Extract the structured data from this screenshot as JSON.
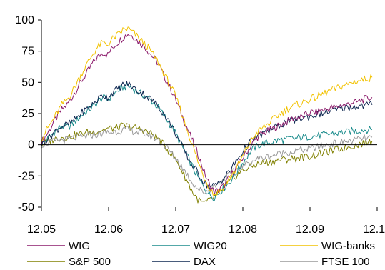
{
  "chart_data": {
    "type": "line",
    "title": "",
    "xlabel": "",
    "ylabel": "",
    "x_ticks": [
      "12.05",
      "12.06",
      "12.07",
      "12.08",
      "12.09",
      "12.10"
    ],
    "y_ticks": [
      100,
      75,
      50,
      25,
      0,
      -25,
      -50
    ],
    "xlim": [
      0,
      66
    ],
    "ylim": [
      -50,
      100
    ],
    "grid": false,
    "legend_position": "bottom",
    "x": [
      0,
      1,
      2,
      3,
      4,
      5,
      6,
      7,
      8,
      9,
      10,
      11,
      12,
      13,
      14,
      15,
      16,
      17,
      18,
      19,
      20,
      21,
      22,
      23,
      24,
      25,
      26,
      27,
      28,
      29,
      30,
      31,
      32,
      33,
      34,
      35,
      36,
      37,
      38,
      39,
      40,
      41,
      42,
      43,
      44,
      45,
      46,
      47,
      48,
      49,
      50,
      51,
      52,
      53,
      54,
      55,
      56,
      57,
      58,
      59,
      60,
      61,
      62,
      63,
      64,
      65
    ],
    "series": [
      {
        "name": "WIG",
        "color": "#8B1A6B",
        "values": [
          2,
          8,
          15,
          22,
          28,
          32,
          38,
          45,
          52,
          58,
          65,
          70,
          74,
          72,
          78,
          82,
          86,
          89,
          87,
          83,
          80,
          75,
          70,
          65,
          56,
          48,
          40,
          30,
          20,
          10,
          0,
          -10,
          -22,
          -32,
          -38,
          -36,
          -32,
          -26,
          -20,
          -14,
          -8,
          -2,
          4,
          8,
          10,
          12,
          14,
          16,
          18,
          20,
          22,
          22,
          24,
          26,
          26,
          28,
          28,
          30,
          30,
          32,
          32,
          34,
          34,
          36,
          37,
          38
        ]
      },
      {
        "name": "WIG20",
        "color": "#1A8C8C",
        "values": [
          0,
          4,
          8,
          12,
          15,
          14,
          16,
          20,
          24,
          27,
          30,
          34,
          38,
          36,
          40,
          43,
          46,
          47,
          45,
          42,
          40,
          37,
          34,
          30,
          24,
          18,
          12,
          4,
          -4,
          -12,
          -20,
          -28,
          -34,
          -40,
          -42,
          -38,
          -34,
          -30,
          -24,
          -18,
          -12,
          -6,
          -2,
          0,
          1,
          2,
          3,
          4,
          4,
          5,
          5,
          6,
          6,
          7,
          7,
          8,
          8,
          9,
          9,
          10,
          10,
          11,
          11,
          12,
          12,
          12
        ]
      },
      {
        "name": "WIG-banks",
        "color": "#F2C200",
        "values": [
          5,
          12,
          18,
          25,
          32,
          36,
          42,
          50,
          58,
          65,
          72,
          78,
          82,
          80,
          85,
          88,
          92,
          93,
          90,
          86,
          82,
          78,
          72,
          66,
          58,
          50,
          42,
          32,
          20,
          8,
          -4,
          -16,
          -26,
          -34,
          -40,
          -37,
          -33,
          -27,
          -21,
          -14,
          -6,
          2,
          8,
          12,
          15,
          18,
          22,
          25,
          28,
          30,
          32,
          33,
          35,
          37,
          38,
          40,
          42,
          44,
          45,
          47,
          48,
          50,
          51,
          52,
          53,
          54
        ]
      },
      {
        "name": "S&P 500",
        "color": "#808000",
        "values": [
          0,
          2,
          4,
          5,
          6,
          6,
          7,
          8,
          9,
          10,
          10,
          11,
          12,
          13,
          13,
          14,
          15,
          15,
          14,
          13,
          12,
          10,
          8,
          5,
          0,
          -5,
          -10,
          -16,
          -24,
          -32,
          -40,
          -45,
          -47,
          -45,
          -42,
          -38,
          -34,
          -30,
          -26,
          -22,
          -20,
          -18,
          -16,
          -15,
          -14,
          -14,
          -13,
          -12,
          -12,
          -11,
          -11,
          -10,
          -10,
          -9,
          -8,
          -7,
          -6,
          -5,
          -4,
          -3,
          -2,
          -1,
          0,
          1,
          2,
          3
        ]
      },
      {
        "name": "DAX",
        "color": "#0D2650",
        "values": [
          0,
          4,
          8,
          12,
          15,
          16,
          18,
          22,
          26,
          29,
          32,
          36,
          40,
          38,
          42,
          45,
          48,
          49,
          46,
          43,
          41,
          38,
          35,
          31,
          25,
          19,
          12,
          4,
          -4,
          -12,
          -18,
          -24,
          -30,
          -34,
          -33,
          -30,
          -26,
          -21,
          -15,
          -9,
          -3,
          2,
          5,
          8,
          10,
          12,
          14,
          16,
          18,
          19,
          20,
          21,
          22,
          23,
          24,
          25,
          26,
          27,
          28,
          29,
          30,
          30,
          31,
          31,
          32,
          32
        ]
      },
      {
        "name": "FTSE 100",
        "color": "#999999",
        "values": [
          0,
          1,
          2,
          3,
          4,
          4,
          5,
          6,
          6,
          7,
          8,
          8,
          9,
          10,
          10,
          11,
          12,
          12,
          11,
          10,
          9,
          8,
          6,
          4,
          0,
          -4,
          -9,
          -14,
          -20,
          -26,
          -32,
          -36,
          -38,
          -36,
          -33,
          -30,
          -27,
          -24,
          -21,
          -18,
          -16,
          -14,
          -12,
          -11,
          -10,
          -9,
          -8,
          -7,
          -6,
          -6,
          -5,
          -4,
          -4,
          -3,
          -2,
          -1,
          0,
          1,
          1,
          2,
          3,
          3,
          4,
          5,
          5,
          6
        ]
      }
    ]
  }
}
